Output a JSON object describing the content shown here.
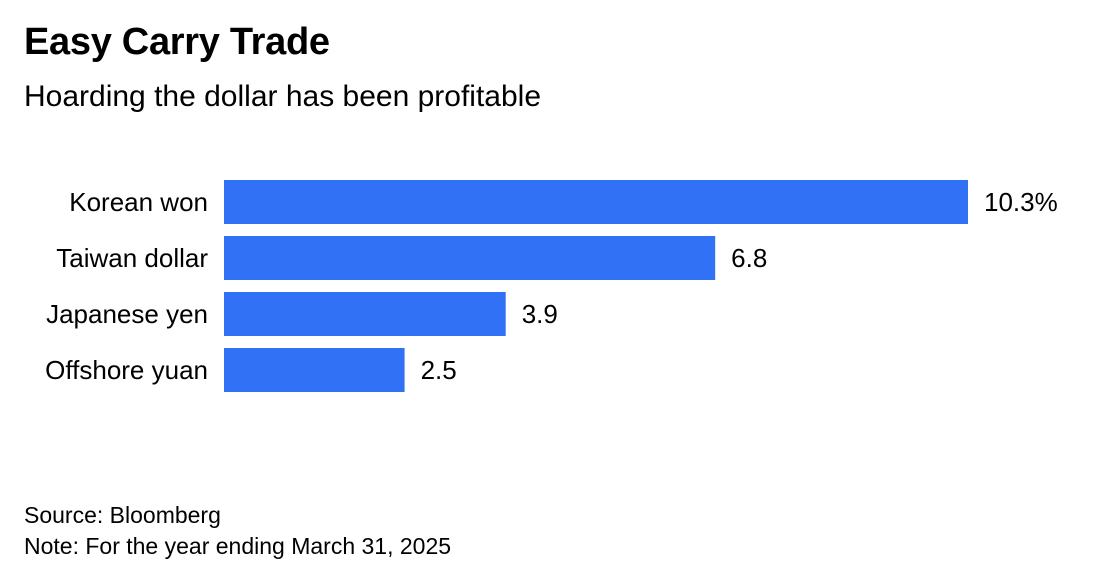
{
  "header": {
    "title": "Easy Carry Trade",
    "subtitle": "Hoarding the dollar has been profitable"
  },
  "footer": {
    "source": "Source: Bloomberg",
    "note": "Note: For the year ending March 31, 2025"
  },
  "chart_data": {
    "type": "bar",
    "orientation": "horizontal",
    "title": "Easy Carry Trade",
    "subtitle": "Hoarding the dollar has been profitable",
    "categories": [
      "Korean won",
      "Taiwan dollar",
      "Japanese yen",
      "Offshore yuan"
    ],
    "values": [
      10.3,
      6.8,
      3.9,
      2.5
    ],
    "value_labels": [
      "10.3%",
      "6.8",
      "3.9",
      "2.5"
    ],
    "unit": "%",
    "xlim": [
      0,
      10.3
    ],
    "grid": false,
    "legend": "none",
    "colors": {
      "bar": "#3071f6",
      "text": "#000000"
    }
  }
}
